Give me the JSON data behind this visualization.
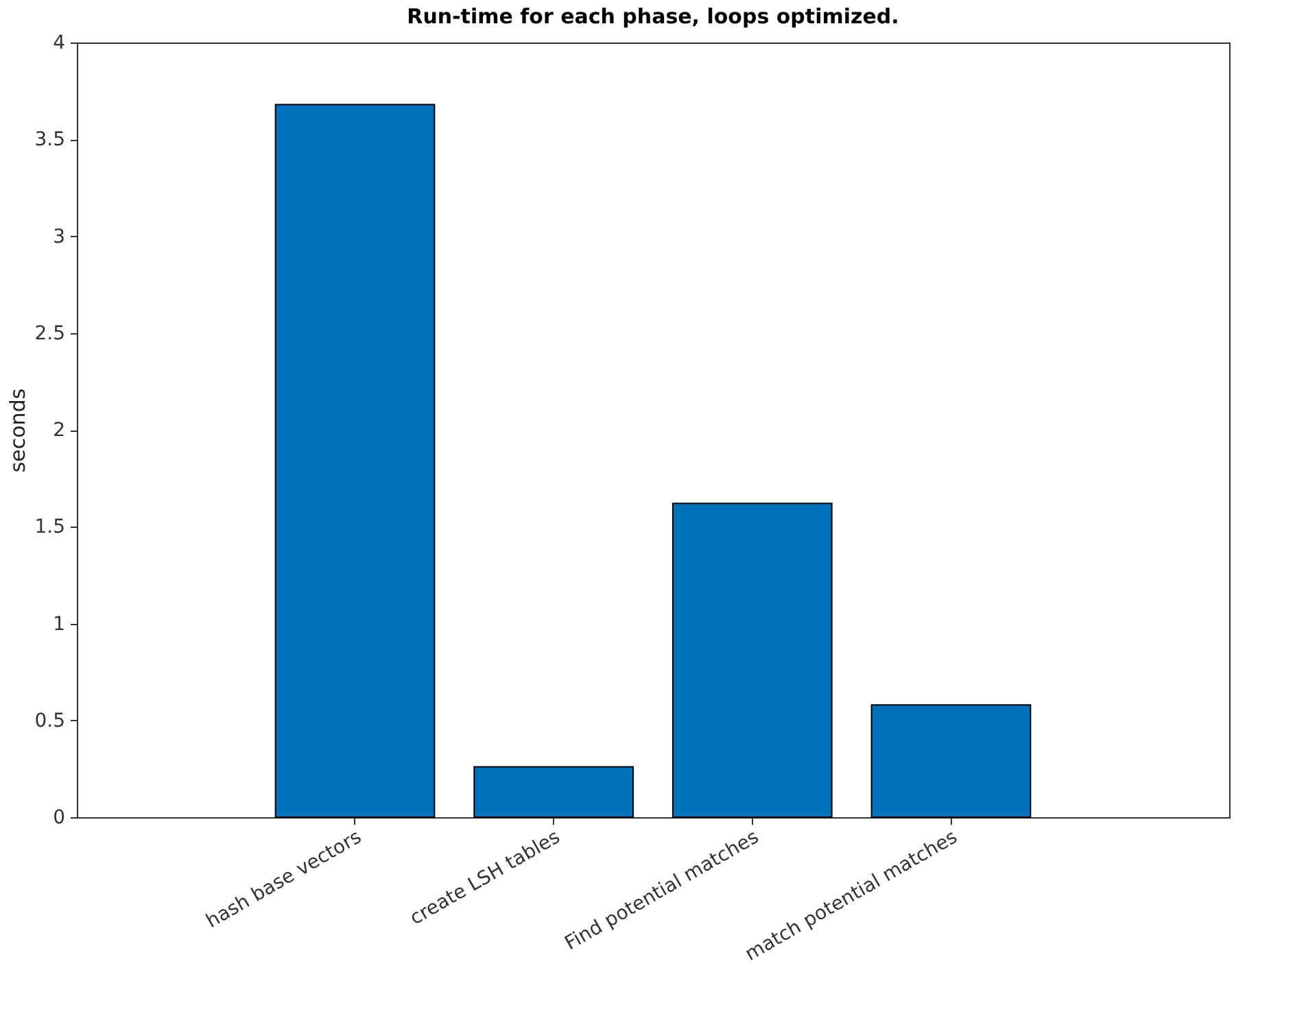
{
  "chart_data": {
    "type": "bar",
    "title": "Run-time for each phase, loops optimized.",
    "ylabel": "seconds",
    "categories": [
      "hash base vectors",
      "create LSH tables",
      "Find potential matches",
      "match potential matches"
    ],
    "values": [
      3.68,
      0.26,
      1.62,
      0.58
    ],
    "color": "#0072bd",
    "ylim": [
      0,
      4
    ],
    "yticks": [
      0,
      0.5,
      1,
      1.5,
      2,
      2.5,
      3,
      3.5,
      4
    ],
    "grid": false
  }
}
